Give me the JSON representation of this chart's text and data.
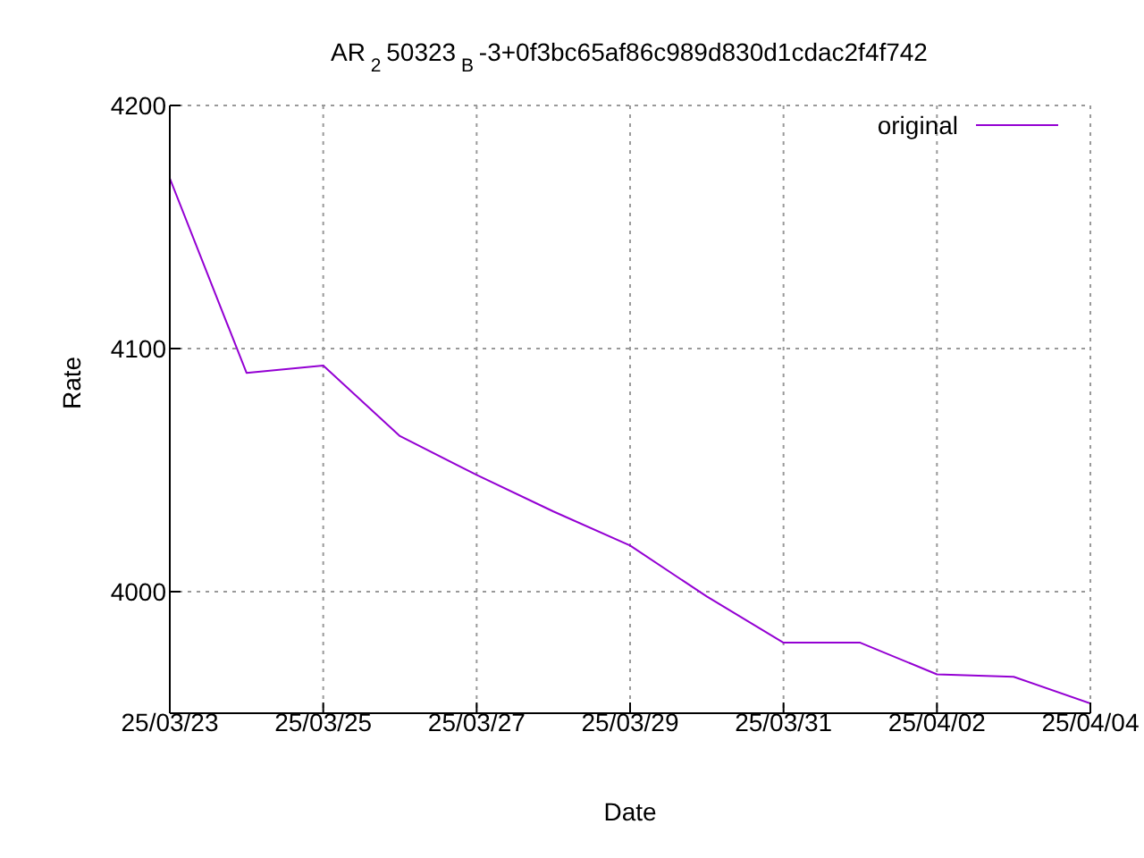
{
  "chart_data": {
    "type": "line",
    "title": "AR$_{2}$ 50323$_{B}$-3+0f3bc65af86c989d830d1cdac2f4f742",
    "xlabel": "Date",
    "ylabel": "Rate",
    "x": [
      "--03-23",
      "--03-24",
      "--03-25",
      "--03-26",
      "--03-27",
      "--03-28",
      "--03-29",
      "--03-30",
      "--03-31",
      "--04-01",
      "--04-02",
      "--04-03",
      "--04-04"
    ],
    "series": [
      {
        "name": "original",
        "color": "#9400d3",
        "values": [
          4170,
          4090,
          4093,
          4064,
          4048,
          4033,
          4019,
          3998,
          3979,
          3979,
          3966,
          3965,
          3954
        ]
      }
    ],
    "xlim": [
      "--03-23",
      "--04-04"
    ],
    "xticks": [
      {
        "value": "--03-23",
        "label": "25/03/23"
      },
      {
        "value": "--03-25",
        "label": "25/03/25"
      },
      {
        "value": "--03-27",
        "label": "25/03/27"
      },
      {
        "value": "--03-29",
        "label": "25/03/29"
      },
      {
        "value": "--03-31",
        "label": "25/03/31"
      },
      {
        "value": "--04-02",
        "label": "25/04/02"
      },
      {
        "value": "--04-04",
        "label": "25/04/04"
      }
    ],
    "ylim": [
      3950,
      4200
    ],
    "yticks": [
      4000,
      4100,
      4200
    ],
    "grid": true,
    "legend": "top right",
    "marker": "none",
    "line_style": "solid"
  }
}
